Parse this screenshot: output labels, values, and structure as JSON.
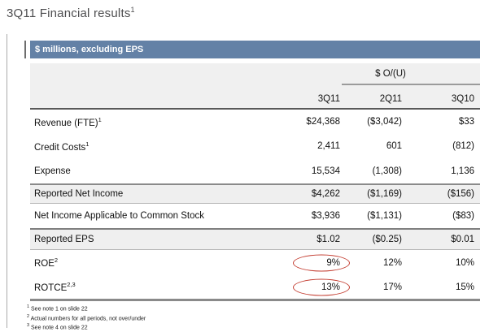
{
  "title": {
    "text": "3Q11 Financial results",
    "superscript": "1"
  },
  "table": {
    "header_bar_label": "$ millions, excluding EPS",
    "over_under_label": "$ O/(U)",
    "columns": [
      "3Q11",
      "2Q11",
      "3Q10"
    ],
    "rows": [
      {
        "label": "Revenue (FTE)",
        "superscript": "1",
        "values": [
          "$24,368",
          "($3,042)",
          "$33"
        ]
      },
      {
        "label": "Credit Costs",
        "superscript": "1",
        "values": [
          "2,411",
          "601",
          "(812)"
        ]
      },
      {
        "label": "Expense",
        "values": [
          "15,534",
          "(1,308)",
          "1,136"
        ]
      },
      {
        "label": "Reported Net Income",
        "values": [
          "$4,262",
          "($1,169)",
          "($156)"
        ]
      },
      {
        "label": "Net Income Applicable to Common Stock",
        "values": [
          "$3,936",
          "($1,131)",
          "($83)"
        ]
      },
      {
        "label": "Reported EPS",
        "values": [
          "$1.02",
          "($0.25)",
          "$0.01"
        ]
      },
      {
        "label": "ROE",
        "superscript": "2",
        "values": [
          "9%",
          "12%",
          "10%"
        ]
      },
      {
        "label": "ROTCE",
        "superscript": "2,3",
        "values": [
          "13%",
          "17%",
          "15%"
        ]
      }
    ],
    "circled_values": [
      "9%",
      "13%"
    ]
  },
  "footnotes": [
    {
      "superscript": "1",
      "text": "See note 1 on slide 22"
    },
    {
      "superscript": "2",
      "text": "Actual numbers for all periods, not over/under"
    },
    {
      "superscript": "3",
      "text": "See note 4 on slide 22"
    }
  ],
  "colors": {
    "header_bar_bg": "#6381a6",
    "shaded_row_bg": "#efefef",
    "circle_stroke": "#c43f33",
    "title_color": "#4e4e50"
  }
}
